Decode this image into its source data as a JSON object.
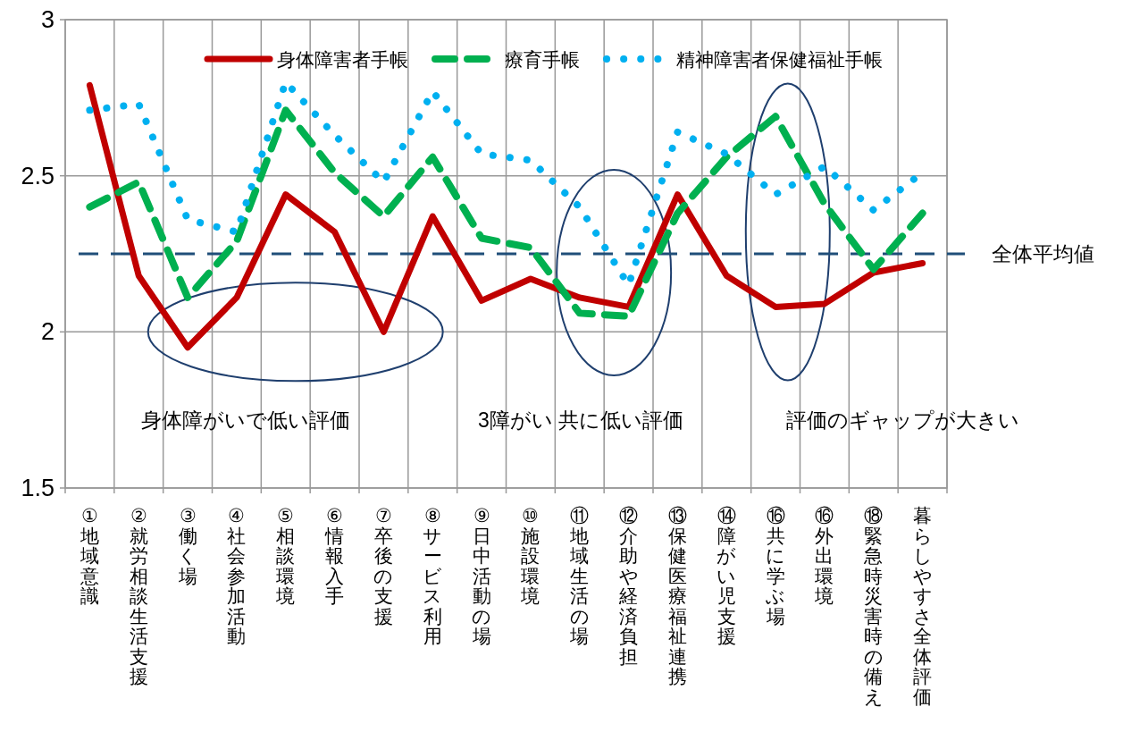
{
  "chart_data": {
    "type": "line",
    "categories": [
      "①地域意識",
      "②就労相談生活支援",
      "③働く場",
      "④社会参加活動",
      "⑤相談環境",
      "⑥情報入手",
      "⑦卒後の支援",
      "⑧サービス利用",
      "⑨日中活動の場",
      "⑩施設環境",
      "⑪地域生活の場",
      "⑫介助や経済負担",
      "⑬保健医療福祉連携",
      "⑭障がい児支援",
      "⑯共に学ぶ場",
      "⑯外出環境",
      "⑱緊急時災害時の備え",
      "暮らしやすさ全体評価"
    ],
    "series": [
      {
        "name": "身体障害者手帳",
        "color": "#c00000",
        "line_style": "solid",
        "values": [
          2.79,
          2.18,
          1.95,
          2.11,
          2.44,
          2.32,
          2.0,
          2.37,
          2.1,
          2.17,
          2.11,
          2.08,
          2.44,
          2.18,
          2.08,
          2.09,
          2.19,
          2.22
        ]
      },
      {
        "name": "療育手帳",
        "color": "#00b050",
        "line_style": "dashed",
        "values": [
          2.4,
          2.48,
          2.11,
          2.29,
          2.71,
          2.51,
          2.37,
          2.56,
          2.3,
          2.27,
          2.06,
          2.05,
          2.38,
          2.56,
          2.69,
          2.41,
          2.2,
          2.38
        ]
      },
      {
        "name": "精神障害者保健福祉手帳",
        "color": "#00b0f0",
        "line_style": "dotted",
        "values": [
          2.71,
          2.73,
          2.36,
          2.32,
          2.8,
          2.63,
          2.48,
          2.77,
          2.57,
          2.55,
          2.4,
          2.15,
          2.64,
          2.57,
          2.44,
          2.53,
          2.39,
          2.51
        ]
      }
    ],
    "ylim": [
      1.5,
      3
    ],
    "yticks": [
      1.5,
      2,
      2.5,
      3
    ],
    "grid": true,
    "legend": "top",
    "marker": "none",
    "ref_lines": [
      {
        "axis": "y",
        "value": 2.25,
        "label": "全体平均値",
        "color": "#1f4e79",
        "line_style": "dashed"
      }
    ],
    "annotations": [
      "身体障がいで低い評価",
      "3障がい 共に低い評価",
      "評価のギャップが大きい"
    ]
  }
}
